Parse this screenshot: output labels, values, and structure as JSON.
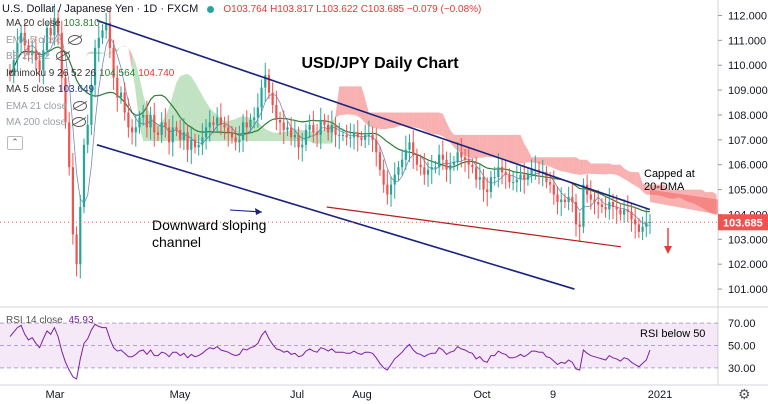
{
  "header": {
    "symbol": "U.S. Dollar / Japanese Yen · 1D · FXCM",
    "ohlc": "O103.764 H103.817 L103.622 C103.685 −0.079 (−0.08%)"
  },
  "legends": [
    {
      "label": "MA 20 close",
      "value": "103.810",
      "value_color": "#2e7d32",
      "hidden": false
    },
    {
      "label": "EMA 5 close",
      "value": "",
      "hidden": true
    },
    {
      "label": "BB 20 2 2",
      "value": "",
      "hidden": true
    },
    {
      "label": "Ichimoku 9 26 52 26",
      "value": "104.564",
      "value2": "104.740",
      "value_color": "#2e7d32",
      "value2_color": "#e53935",
      "hidden": false
    },
    {
      "label": "MA 5 close",
      "value": "103.649",
      "value_color": "#1e3a8a",
      "hidden": false
    },
    {
      "label": "EMA 21 close",
      "value": "",
      "hidden": true
    },
    {
      "label": "MA 200 close",
      "value": "",
      "hidden": true
    }
  ],
  "rsi_legend": {
    "label": "RSI 14 close",
    "value": "45.93"
  },
  "chart_data": {
    "type": "candlestick",
    "title": "USD/JPY Daily Chart",
    "y_ticks": [
      "112.000",
      "111.000",
      "110.000",
      "109.000",
      "108.000",
      "107.000",
      "106.000",
      "105.000",
      "104.000",
      "103.000",
      "102.000",
      "101.000"
    ],
    "ylim": [
      100.4,
      112.3
    ],
    "x_labels": [
      "Mar",
      "May",
      "Jul",
      "Aug",
      "Oct",
      "9",
      "2021"
    ],
    "last_price": "103.685",
    "annotations": {
      "channel": "Downward sloping channel",
      "capped": "Capped at 20-DMA",
      "rsi": "RSI below 50"
    },
    "channel_upper": [
      [
        0.135,
        111.8
      ],
      [
        0.905,
        104.2
      ]
    ],
    "channel_lower": [
      [
        0.135,
        106.8
      ],
      [
        0.8,
        101.0
      ]
    ],
    "support_line": [
      [
        0.455,
        104.3
      ],
      [
        0.865,
        102.7
      ]
    ],
    "rsi_ticks": [
      "70.00",
      "50.00",
      "30.00"
    ],
    "rsi_levels": [
      70,
      50,
      30
    ],
    "candles_close": [
      109.6,
      110.2,
      110.9,
      111.3,
      110.8,
      110.4,
      110.6,
      110.2,
      109.8,
      110.6,
      111.5,
      111.2,
      111.9,
      111.3,
      109.5,
      107.7,
      105.9,
      103.2,
      102.0,
      104.3,
      106.8,
      107.6,
      109.2,
      110.7,
      111.1,
      111.4,
      111.7,
      110.7,
      109.5,
      108.7,
      108.9,
      108.1,
      107.5,
      107.3,
      107.5,
      107.9,
      108.0,
      107.5,
      108.0,
      107.3,
      107.2,
      107.7,
      107.5,
      106.9,
      107.5,
      107.4,
      107.0,
      107.3,
      106.6,
      107.0,
      106.7,
      106.8,
      107.1,
      107.5,
      107.7,
      107.6,
      107.9,
      107.6,
      107.5,
      107.3,
      107.1,
      106.9,
      107.0,
      107.7,
      107.5,
      107.8,
      107.9,
      108.3,
      109.1,
      109.6,
      108.9,
      108.4,
      107.8,
      107.7,
      107.4,
      107.5,
      107.1,
      107.2,
      106.7,
      106.8,
      107.4,
      107.6,
      107.3,
      107.2,
      107.8,
      107.6,
      107.3,
      107.6,
      107.2,
      107.2,
      107.2,
      107.1,
      107.1,
      107.3,
      107.1,
      107.0,
      107.2,
      107.2,
      107.0,
      106.5,
      105.8,
      105.2,
      104.8,
      105.2,
      105.6,
      105.9,
      106.2,
      106.6,
      106.9,
      106.4,
      106.0,
      105.9,
      105.6,
      105.8,
      105.9,
      105.9,
      106.4,
      106.2,
      105.8,
      106.0,
      106.1,
      106.5,
      106.3,
      106.2,
      106.0,
      105.9,
      105.4,
      105.5,
      105.0,
      104.9,
      105.5,
      105.5,
      105.9,
      105.7,
      105.6,
      105.3,
      105.3,
      105.4,
      105.6,
      105.4,
      105.6,
      105.8,
      105.8,
      105.7,
      105.7,
      105.3,
      105.2,
      104.8,
      104.5,
      104.6,
      104.5,
      104.7,
      104.5,
      103.6,
      103.5,
      105.2,
      104.8,
      104.6,
      104.5,
      104.4,
      104.3,
      104.2,
      104.5,
      104.3,
      104.2,
      104.0,
      104.2,
      104.1,
      103.8,
      103.6,
      103.3,
      103.5,
      103.7,
      103.7
    ],
    "rsi_values": [
      58,
      62,
      66,
      68,
      60,
      55,
      57,
      52,
      48,
      56,
      63,
      60,
      66,
      58,
      45,
      35,
      28,
      22,
      20,
      38,
      52,
      56,
      64,
      69,
      67,
      66,
      66,
      56,
      48,
      45,
      46,
      43,
      40,
      40,
      42,
      45,
      46,
      42,
      46,
      41,
      41,
      44,
      43,
      40,
      44,
      44,
      41,
      43,
      39,
      42,
      40,
      41,
      43,
      46,
      48,
      47,
      49,
      46,
      45,
      44,
      42,
      41,
      42,
      47,
      46,
      48,
      49,
      52,
      59,
      63,
      56,
      51,
      47,
      46,
      44,
      45,
      42,
      43,
      40,
      41,
      45,
      47,
      45,
      44,
      48,
      47,
      45,
      47,
      44,
      44,
      44,
      43,
      43,
      45,
      43,
      42,
      44,
      44,
      43,
      39,
      34,
      30,
      28,
      33,
      38,
      41,
      44,
      48,
      51,
      46,
      43,
      42,
      40,
      42,
      43,
      43,
      48,
      46,
      42,
      44,
      45,
      49,
      47,
      46,
      44,
      43,
      38,
      40,
      36,
      35,
      41,
      41,
      45,
      43,
      42,
      39,
      39,
      40,
      42,
      40,
      42,
      45,
      45,
      44,
      44,
      40,
      39,
      36,
      33,
      35,
      34,
      37,
      35,
      29,
      28,
      46,
      43,
      41,
      40,
      39,
      38,
      37,
      41,
      39,
      38,
      36,
      39,
      38,
      35,
      33,
      31,
      34,
      37,
      46
    ]
  }
}
